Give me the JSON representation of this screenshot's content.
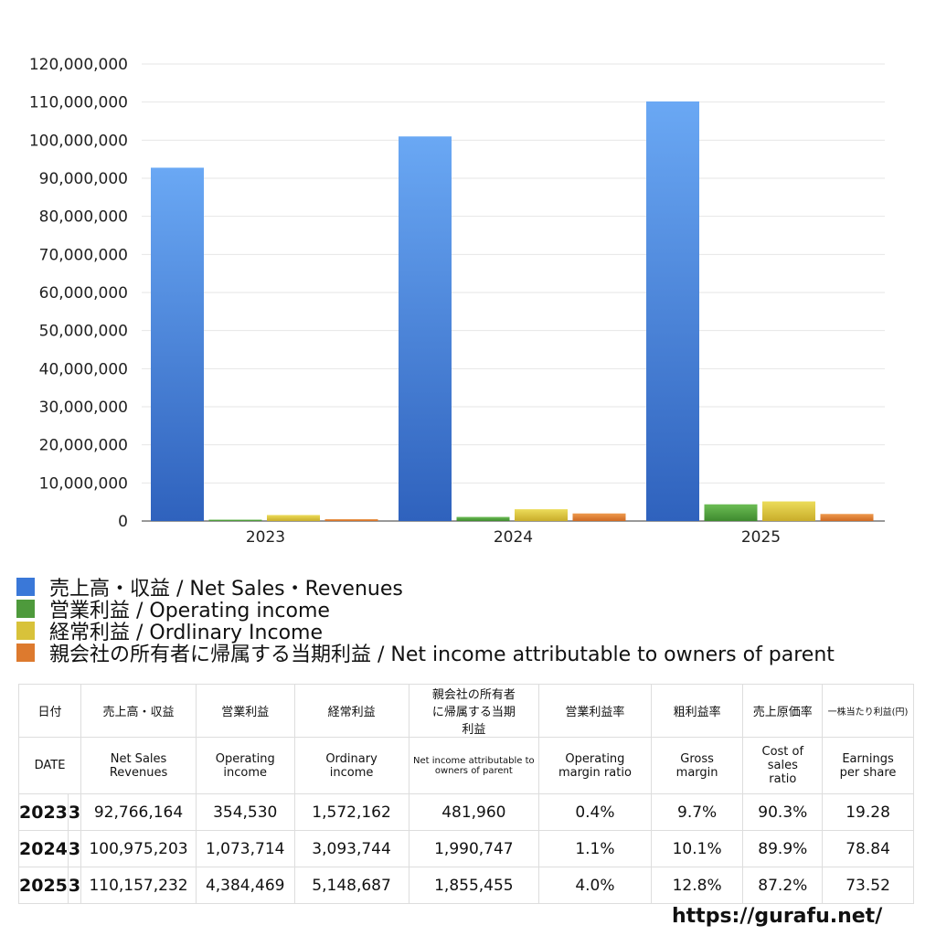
{
  "chart_data": {
    "type": "bar",
    "categories": [
      "2023",
      "2024",
      "2025"
    ],
    "ylim": [
      0,
      120000000
    ],
    "yticks": [
      "0",
      "10,000,000",
      "20,000,000",
      "30,000,000",
      "40,000,000",
      "50,000,000",
      "60,000,000",
      "70,000,000",
      "80,000,000",
      "90,000,000",
      "100,000,000",
      "110,000,000",
      "120,000,000"
    ],
    "grid": true,
    "legend_position": "bottom",
    "series": [
      {
        "name": "売上高・収益 / Net Sales・Revenues",
        "color": "#3a78d8",
        "values": [
          92766164,
          100975203,
          110157232
        ]
      },
      {
        "name": "営業利益 / Operating income",
        "color": "#4e9a3c",
        "values": [
          354530,
          1073714,
          4384469
        ]
      },
      {
        "name": "経常利益 / Ordlinary Income",
        "color": "#d8c23a",
        "values": [
          1572162,
          3093744,
          5148687
        ]
      },
      {
        "name": "親会社の所有者に帰属する当期利益 / Net income attributable to owners of parent",
        "color": "#dd7a2e",
        "values": [
          481960,
          1990747,
          1855455
        ]
      }
    ]
  },
  "table": {
    "header_jp": [
      "日付",
      "売上高・収益",
      "営業利益",
      "経常利益",
      "親会社の所有者に帰属する当期利益",
      "営業利益率",
      "粗利益率",
      "売上原価率",
      "一株当たり利益(円)"
    ],
    "header_en": [
      "DATE",
      "Net Sales Revenues",
      "Operating income",
      "Ordinary income",
      "Net income attributable to owners of parent",
      "Operating margin ratio",
      "Gross margin",
      "Cost of sales ratio",
      "Earnings per share"
    ],
    "rows": [
      [
        "2023",
        "3",
        "92,766,164",
        "354,530",
        "1,572,162",
        "481,960",
        "0.4%",
        "9.7%",
        "90.3%",
        "19.28"
      ],
      [
        "2024",
        "3",
        "100,975,203",
        "1,073,714",
        "3,093,744",
        "1,990,747",
        "1.1%",
        "10.1%",
        "89.9%",
        "78.84"
      ],
      [
        "2025",
        "3",
        "110,157,232",
        "4,384,469",
        "5,148,687",
        "1,855,455",
        "4.0%",
        "12.8%",
        "87.2%",
        "73.52"
      ]
    ]
  },
  "site": "https://gurafu.net/"
}
